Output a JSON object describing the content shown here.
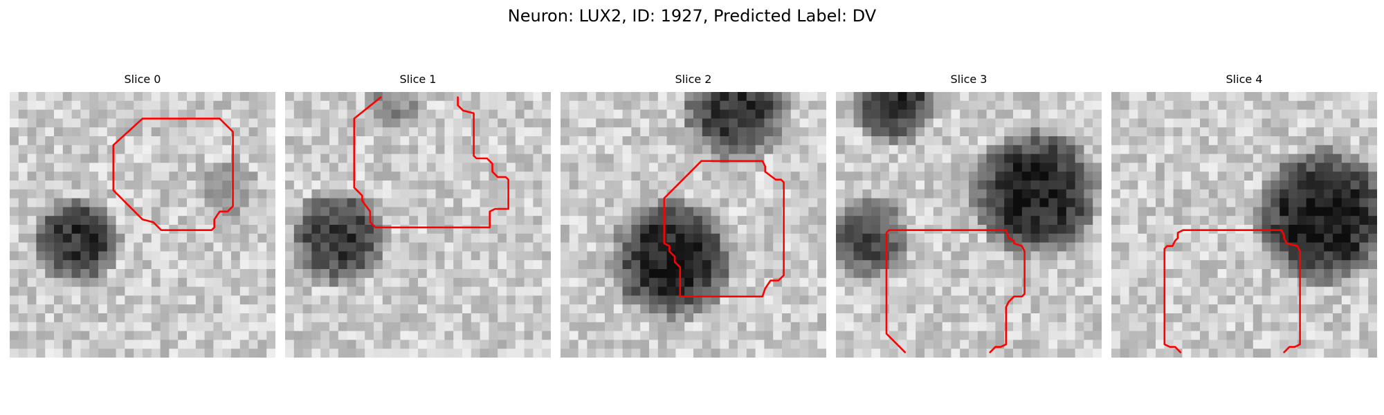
{
  "figure": {
    "title": "Neuron: LUX2, ID: 1927, Predicted Label: DV"
  },
  "contour_color": "#ff0000",
  "colormap": "gray",
  "panels": [
    {
      "title": "Slice 0",
      "blobs": [
        {
          "center": [
            0.25,
            0.56
          ],
          "radius": 0.18,
          "darkness": 0.85
        },
        {
          "center": [
            0.82,
            0.36
          ],
          "radius": 0.12,
          "darkness": 0.35
        }
      ],
      "contours": [
        [
          [
            0.5,
            0.1
          ],
          [
            0.79,
            0.1
          ],
          [
            0.84,
            0.15
          ],
          [
            0.84,
            0.43
          ],
          [
            0.82,
            0.45
          ],
          [
            0.79,
            0.45
          ],
          [
            0.77,
            0.48
          ],
          [
            0.77,
            0.51
          ],
          [
            0.76,
            0.52
          ],
          [
            0.57,
            0.52
          ],
          [
            0.54,
            0.49
          ],
          [
            0.5,
            0.48
          ],
          [
            0.39,
            0.37
          ],
          [
            0.39,
            0.2
          ],
          [
            0.5,
            0.1
          ]
        ]
      ]
    },
    {
      "title": "Slice 1",
      "blobs": [
        {
          "center": [
            0.2,
            0.55
          ],
          "radius": 0.2,
          "darkness": 0.8
        },
        {
          "center": [
            0.4,
            0.04
          ],
          "radius": 0.12,
          "darkness": 0.4
        }
      ],
      "contours": [
        [
          [
            0.36,
            0.02
          ],
          [
            0.26,
            0.1
          ],
          [
            0.26,
            0.36
          ],
          [
            0.29,
            0.39
          ],
          [
            0.29,
            0.41
          ],
          [
            0.32,
            0.45
          ],
          [
            0.32,
            0.49
          ],
          [
            0.34,
            0.51
          ],
          [
            0.77,
            0.51
          ],
          [
            0.77,
            0.45
          ],
          [
            0.79,
            0.44
          ],
          [
            0.84,
            0.44
          ],
          [
            0.84,
            0.33
          ],
          [
            0.83,
            0.32
          ],
          [
            0.8,
            0.32
          ],
          [
            0.78,
            0.3
          ],
          [
            0.78,
            0.27
          ],
          [
            0.76,
            0.25
          ],
          [
            0.72,
            0.25
          ],
          [
            0.71,
            0.24
          ],
          [
            0.71,
            0.08
          ],
          [
            0.67,
            0.07
          ],
          [
            0.65,
            0.05
          ],
          [
            0.65,
            0.02
          ]
        ]
      ]
    },
    {
      "title": "Slice 2",
      "blobs": [
        {
          "center": [
            0.42,
            0.63
          ],
          "radius": 0.25,
          "darkness": 0.95
        },
        {
          "center": [
            0.66,
            0.06
          ],
          "radius": 0.22,
          "darkness": 0.85
        }
      ],
      "contours": [
        [
          [
            0.53,
            0.26
          ],
          [
            0.76,
            0.26
          ],
          [
            0.77,
            0.28
          ],
          [
            0.77,
            0.3
          ],
          [
            0.81,
            0.33
          ],
          [
            0.83,
            0.33
          ],
          [
            0.84,
            0.34
          ],
          [
            0.84,
            0.69
          ],
          [
            0.82,
            0.71
          ],
          [
            0.79,
            0.71
          ],
          [
            0.77,
            0.74
          ],
          [
            0.76,
            0.77
          ],
          [
            0.45,
            0.77
          ],
          [
            0.45,
            0.66
          ],
          [
            0.43,
            0.64
          ],
          [
            0.43,
            0.62
          ],
          [
            0.41,
            0.6
          ],
          [
            0.41,
            0.58
          ],
          [
            0.39,
            0.57
          ],
          [
            0.39,
            0.53
          ],
          [
            0.39,
            0.4
          ],
          [
            0.53,
            0.26
          ]
        ]
      ]
    },
    {
      "title": "Slice 3",
      "blobs": [
        {
          "center": [
            0.75,
            0.38
          ],
          "radius": 0.26,
          "darkness": 0.95
        },
        {
          "center": [
            0.12,
            0.55
          ],
          "radius": 0.17,
          "darkness": 0.7
        },
        {
          "center": [
            0.22,
            0.03
          ],
          "radius": 0.18,
          "darkness": 0.85
        }
      ],
      "contours": [
        [
          [
            0.26,
            0.98
          ],
          [
            0.19,
            0.91
          ],
          [
            0.19,
            0.53
          ],
          [
            0.2,
            0.52
          ],
          [
            0.64,
            0.52
          ],
          [
            0.65,
            0.55
          ],
          [
            0.67,
            0.56
          ],
          [
            0.67,
            0.57
          ],
          [
            0.7,
            0.58
          ],
          [
            0.71,
            0.6
          ],
          [
            0.71,
            0.76
          ],
          [
            0.7,
            0.77
          ],
          [
            0.67,
            0.77
          ],
          [
            0.65,
            0.79
          ],
          [
            0.64,
            0.81
          ],
          [
            0.64,
            0.95
          ],
          [
            0.62,
            0.96
          ],
          [
            0.6,
            0.96
          ],
          [
            0.58,
            0.98
          ]
        ]
      ]
    },
    {
      "title": "Slice 4",
      "blobs": [
        {
          "center": [
            0.8,
            0.47
          ],
          "radius": 0.28,
          "darkness": 1.0
        }
      ],
      "contours": [
        [
          [
            0.26,
            0.98
          ],
          [
            0.24,
            0.96
          ],
          [
            0.22,
            0.96
          ],
          [
            0.2,
            0.95
          ],
          [
            0.2,
            0.59
          ],
          [
            0.21,
            0.58
          ],
          [
            0.23,
            0.58
          ],
          [
            0.24,
            0.56
          ],
          [
            0.25,
            0.55
          ],
          [
            0.25,
            0.53
          ],
          [
            0.27,
            0.52
          ],
          [
            0.64,
            0.52
          ],
          [
            0.65,
            0.54
          ],
          [
            0.65,
            0.55
          ],
          [
            0.66,
            0.57
          ],
          [
            0.7,
            0.58
          ],
          [
            0.71,
            0.6
          ],
          [
            0.71,
            0.95
          ],
          [
            0.69,
            0.96
          ],
          [
            0.67,
            0.96
          ],
          [
            0.65,
            0.98
          ]
        ]
      ]
    }
  ]
}
